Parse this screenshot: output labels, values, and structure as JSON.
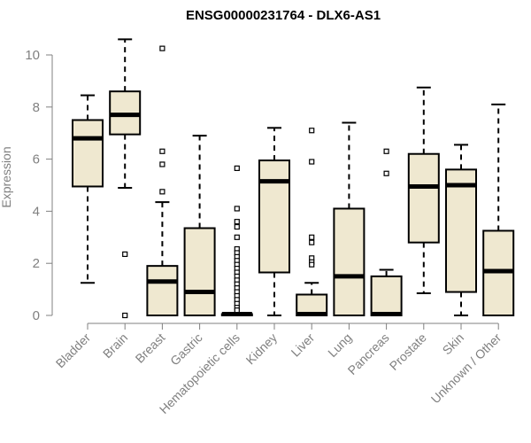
{
  "chart_data": {
    "type": "boxplot",
    "title": "ENSG00000231764 - DLX6-AS1",
    "xlabel": "",
    "ylabel": "Expression",
    "ylim": [
      0,
      10
    ],
    "yticks": [
      0,
      2,
      4,
      6,
      8,
      10
    ],
    "box_fill": "#efe8d0",
    "categories": [
      "Bladder",
      "Brain",
      "Breast",
      "Gastric",
      "Hematopoietic cells",
      "Kidney",
      "Liver",
      "Lung",
      "Pancreas",
      "Prostate",
      "Skin",
      "Unknown / Other"
    ],
    "boxes": [
      {
        "name": "Bladder",
        "whisker_low": 1.25,
        "q1": 4.95,
        "median": 6.8,
        "q3": 7.5,
        "whisker_high": 8.45,
        "outliers": []
      },
      {
        "name": "Brain",
        "whisker_low": 4.9,
        "q1": 6.95,
        "median": 7.7,
        "q3": 8.6,
        "whisker_high": 10.6,
        "outliers": [
          2.35,
          0.0
        ]
      },
      {
        "name": "Breast",
        "whisker_low": 0.0,
        "q1": 0.0,
        "median": 1.3,
        "q3": 1.9,
        "whisker_high": 4.35,
        "outliers": [
          10.25,
          6.3,
          5.8,
          4.75
        ]
      },
      {
        "name": "Gastric",
        "whisker_low": 0.0,
        "q1": 0.0,
        "median": 0.9,
        "q3": 3.35,
        "whisker_high": 6.9,
        "outliers": []
      },
      {
        "name": "Hematopoietic cells",
        "whisker_low": 0.0,
        "q1": 0.0,
        "median": 0.05,
        "q3": 0.05,
        "whisker_high": 0.1,
        "outliers": [
          5.65,
          4.1,
          3.6,
          3.4,
          3.0,
          2.55,
          2.4,
          2.25,
          2.1,
          1.95,
          1.8,
          1.65,
          1.5,
          1.35,
          1.2,
          1.05,
          0.9,
          0.75,
          0.6,
          0.45,
          0.3,
          0.2
        ]
      },
      {
        "name": "Kidney",
        "whisker_low": 0.0,
        "q1": 1.65,
        "median": 5.15,
        "q3": 5.95,
        "whisker_high": 7.2,
        "outliers": []
      },
      {
        "name": "Liver",
        "whisker_low": 0.0,
        "q1": 0.0,
        "median": 0.05,
        "q3": 0.8,
        "whisker_high": 1.25,
        "outliers": [
          7.1,
          5.9,
          3.0,
          2.8,
          2.2,
          2.05,
          1.95
        ]
      },
      {
        "name": "Lung",
        "whisker_low": 0.0,
        "q1": 0.0,
        "median": 1.5,
        "q3": 4.1,
        "whisker_high": 7.4,
        "outliers": []
      },
      {
        "name": "Pancreas",
        "whisker_low": 0.0,
        "q1": 0.0,
        "median": 0.05,
        "q3": 1.5,
        "whisker_high": 1.75,
        "outliers": [
          6.3,
          5.45
        ]
      },
      {
        "name": "Prostate",
        "whisker_low": 0.85,
        "q1": 2.8,
        "median": 4.95,
        "q3": 6.2,
        "whisker_high": 8.75,
        "outliers": []
      },
      {
        "name": "Skin",
        "whisker_low": 0.0,
        "q1": 0.9,
        "median": 5.0,
        "q3": 5.6,
        "whisker_high": 6.55,
        "outliers": []
      },
      {
        "name": "Unknown / Other",
        "whisker_low": 0.0,
        "q1": 0.0,
        "median": 1.7,
        "q3": 3.25,
        "whisker_high": 8.1,
        "outliers": []
      }
    ]
  }
}
